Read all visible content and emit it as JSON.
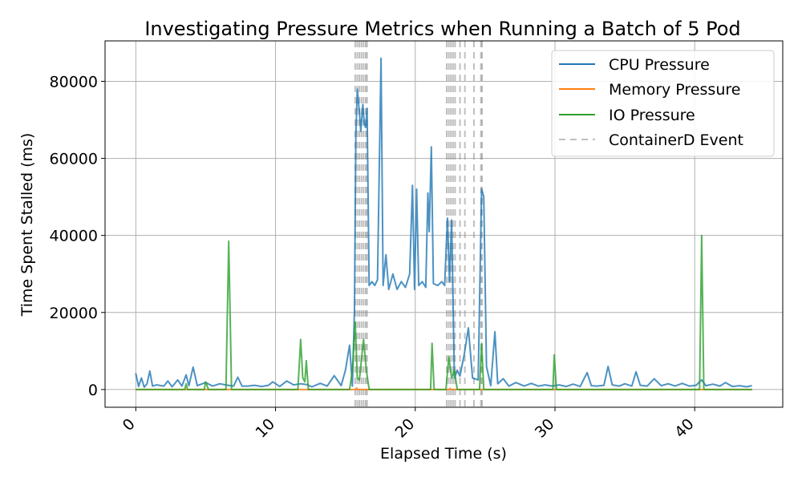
{
  "chart_data": {
    "type": "line",
    "title": "Investigating Pressure Metrics when Running a Batch of 5 Pod",
    "xlabel": "Elapsed Time (s)",
    "ylabel": "Time Spent Stalled (ms)",
    "xlim": [
      -2.2,
      46.3
    ],
    "ylim": [
      -4600,
      90500
    ],
    "xticks": [
      0,
      10,
      20,
      30,
      40
    ],
    "yticks": [
      0,
      20000,
      40000,
      60000,
      80000
    ],
    "grid": true,
    "legend_position": "top-right",
    "legend": [
      "CPU Pressure",
      "Memory Pressure",
      "IO Pressure",
      "ContainerD Event"
    ],
    "colors": {
      "cpu": "#1f77b4",
      "memory": "#ff7f0e",
      "io": "#2ca02c",
      "event": "#7f7f7f"
    },
    "series": [
      {
        "name": "CPU Pressure",
        "points": [
          [
            0,
            4200
          ],
          [
            0.2,
            800
          ],
          [
            0.4,
            3000
          ],
          [
            0.6,
            600
          ],
          [
            0.8,
            1500
          ],
          [
            1.0,
            4800
          ],
          [
            1.2,
            900
          ],
          [
            1.5,
            1200
          ],
          [
            2.0,
            900
          ],
          [
            2.3,
            2200
          ],
          [
            2.6,
            700
          ],
          [
            3.0,
            2500
          ],
          [
            3.3,
            900
          ],
          [
            3.6,
            3800
          ],
          [
            3.8,
            1000
          ],
          [
            4.1,
            5800
          ],
          [
            4.4,
            1000
          ],
          [
            5.0,
            1800
          ],
          [
            5.5,
            900
          ],
          [
            6.0,
            1500
          ],
          [
            6.6,
            1100
          ],
          [
            7.0,
            900
          ],
          [
            7.3,
            3200
          ],
          [
            7.6,
            900
          ],
          [
            8.0,
            900
          ],
          [
            8.5,
            1100
          ],
          [
            9.0,
            800
          ],
          [
            9.5,
            1100
          ],
          [
            9.8,
            2000
          ],
          [
            10.3,
            800
          ],
          [
            10.8,
            2200
          ],
          [
            11.3,
            1200
          ],
          [
            11.8,
            1500
          ],
          [
            12.2,
            1300
          ],
          [
            12.6,
            700
          ],
          [
            13.2,
            1600
          ],
          [
            13.7,
            900
          ],
          [
            14.2,
            3600
          ],
          [
            14.7,
            1000
          ],
          [
            15.0,
            5000
          ],
          [
            15.3,
            11500
          ],
          [
            15.5,
            900
          ],
          [
            15.65,
            21000
          ],
          [
            15.75,
            66000
          ],
          [
            15.85,
            78000
          ],
          [
            16.0,
            72000
          ],
          [
            16.1,
            67000
          ],
          [
            16.25,
            74000
          ],
          [
            16.35,
            69000
          ],
          [
            16.45,
            68000
          ],
          [
            16.55,
            73000
          ],
          [
            16.7,
            27000
          ],
          [
            16.9,
            28000
          ],
          [
            17.1,
            27000
          ],
          [
            17.3,
            28500
          ],
          [
            17.55,
            86000
          ],
          [
            17.7,
            27000
          ],
          [
            17.9,
            35000
          ],
          [
            18.1,
            26000
          ],
          [
            18.4,
            30000
          ],
          [
            18.7,
            26000
          ],
          [
            19.0,
            28000
          ],
          [
            19.3,
            26500
          ],
          [
            19.6,
            30000
          ],
          [
            19.8,
            53000
          ],
          [
            19.95,
            26000
          ],
          [
            20.1,
            52000
          ],
          [
            20.25,
            27000
          ],
          [
            20.5,
            28000
          ],
          [
            20.75,
            26500
          ],
          [
            20.9,
            51000
          ],
          [
            21.0,
            41000
          ],
          [
            21.15,
            63000
          ],
          [
            21.3,
            27500
          ],
          [
            21.6,
            27000
          ],
          [
            21.9,
            28000
          ],
          [
            22.1,
            27000
          ],
          [
            22.3,
            44500
          ],
          [
            22.45,
            28000
          ],
          [
            22.6,
            44000
          ],
          [
            22.8,
            3000
          ],
          [
            23.0,
            5000
          ],
          [
            23.2,
            3500
          ],
          [
            23.5,
            9000
          ],
          [
            23.8,
            16000
          ],
          [
            24.1,
            3000
          ],
          [
            24.5,
            2500
          ],
          [
            24.75,
            52000
          ],
          [
            24.9,
            50000
          ],
          [
            25.1,
            6000
          ],
          [
            25.4,
            1000
          ],
          [
            25.7,
            15000
          ],
          [
            25.9,
            1500
          ],
          [
            26.3,
            2800
          ],
          [
            26.7,
            900
          ],
          [
            27.2,
            1800
          ],
          [
            27.8,
            900
          ],
          [
            28.3,
            1600
          ],
          [
            28.8,
            900
          ],
          [
            29.3,
            1200
          ],
          [
            29.8,
            900
          ],
          [
            30.3,
            1200
          ],
          [
            30.8,
            800
          ],
          [
            31.3,
            1400
          ],
          [
            31.8,
            800
          ],
          [
            32.3,
            4400
          ],
          [
            32.6,
            1000
          ],
          [
            33.0,
            900
          ],
          [
            33.5,
            1100
          ],
          [
            33.8,
            6000
          ],
          [
            34.1,
            1200
          ],
          [
            34.6,
            900
          ],
          [
            35.0,
            1500
          ],
          [
            35.5,
            900
          ],
          [
            35.8,
            4600
          ],
          [
            36.1,
            1100
          ],
          [
            36.6,
            900
          ],
          [
            37.1,
            2800
          ],
          [
            37.6,
            1000
          ],
          [
            38.1,
            1500
          ],
          [
            38.6,
            900
          ],
          [
            39.1,
            1600
          ],
          [
            39.6,
            900
          ],
          [
            40.1,
            1100
          ],
          [
            40.5,
            2500
          ],
          [
            40.8,
            1000
          ],
          [
            41.3,
            1400
          ],
          [
            41.8,
            900
          ],
          [
            42.2,
            1800
          ],
          [
            42.7,
            800
          ],
          [
            43.2,
            1000
          ],
          [
            43.7,
            700
          ],
          [
            44.1,
            1000
          ]
        ]
      },
      {
        "name": "Memory Pressure",
        "points": [
          [
            0,
            0
          ],
          [
            15.7,
            0
          ],
          [
            15.8,
            400
          ],
          [
            15.9,
            0
          ],
          [
            22.4,
            0
          ],
          [
            22.5,
            300
          ],
          [
            22.6,
            0
          ],
          [
            44.1,
            0
          ]
        ]
      },
      {
        "name": "IO Pressure",
        "points": [
          [
            0,
            0
          ],
          [
            3.5,
            0
          ],
          [
            3.6,
            1500
          ],
          [
            3.7,
            0
          ],
          [
            4.9,
            0
          ],
          [
            5.0,
            2000
          ],
          [
            5.2,
            0
          ],
          [
            6.45,
            0
          ],
          [
            6.65,
            38500
          ],
          [
            6.85,
            0
          ],
          [
            11.6,
            0
          ],
          [
            11.8,
            13000
          ],
          [
            11.95,
            3000
          ],
          [
            12.1,
            2000
          ],
          [
            12.2,
            7500
          ],
          [
            12.35,
            0
          ],
          [
            15.3,
            0
          ],
          [
            15.5,
            5000
          ],
          [
            15.7,
            17500
          ],
          [
            15.85,
            3000
          ],
          [
            16.0,
            2500
          ],
          [
            16.3,
            13000
          ],
          [
            16.5,
            5000
          ],
          [
            16.7,
            0
          ],
          [
            21.1,
            0
          ],
          [
            21.2,
            12000
          ],
          [
            21.35,
            0
          ],
          [
            22.2,
            0
          ],
          [
            22.4,
            8500
          ],
          [
            22.6,
            3000
          ],
          [
            22.8,
            5000
          ],
          [
            23.0,
            0
          ],
          [
            24.6,
            0
          ],
          [
            24.75,
            12000
          ],
          [
            24.9,
            0
          ],
          [
            29.85,
            0
          ],
          [
            29.95,
            9000
          ],
          [
            30.1,
            0
          ],
          [
            40.35,
            0
          ],
          [
            40.5,
            40000
          ],
          [
            40.65,
            0
          ],
          [
            44.1,
            0
          ]
        ]
      }
    ],
    "events": [
      15.7,
      15.85,
      16.0,
      16.15,
      16.3,
      16.45,
      16.55,
      22.25,
      22.4,
      22.55,
      22.7,
      22.85,
      23.2,
      23.55,
      24.2,
      24.7,
      24.78
    ]
  }
}
